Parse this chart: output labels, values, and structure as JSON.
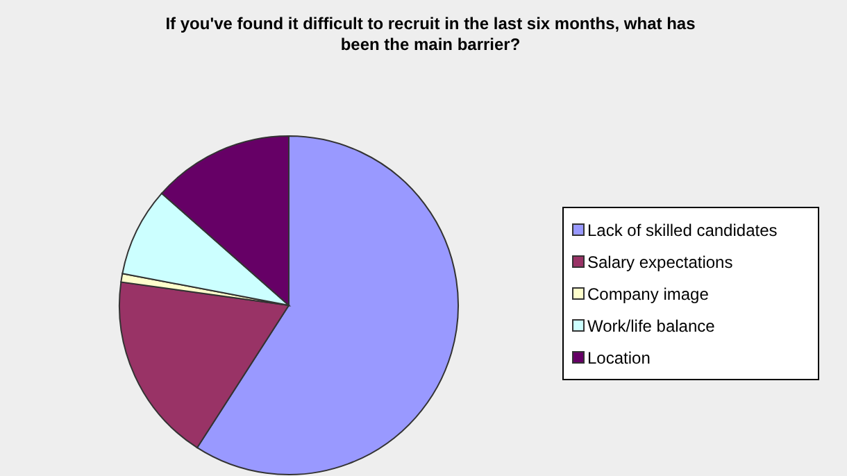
{
  "chart_data": {
    "type": "pie",
    "title": "If you've found it difficult to recruit in the last six months, what has been the main barrier?",
    "categories": [
      "Lack of skilled candidates",
      "Salary expectations",
      "Company image",
      "Work/life balance",
      "Location"
    ],
    "values": [
      59.1,
      18.1,
      0.8,
      8.5,
      13.5
    ],
    "colors": [
      "#9999ff",
      "#993366",
      "#ffffcc",
      "#ccffff",
      "#660066"
    ],
    "legend": "right"
  }
}
